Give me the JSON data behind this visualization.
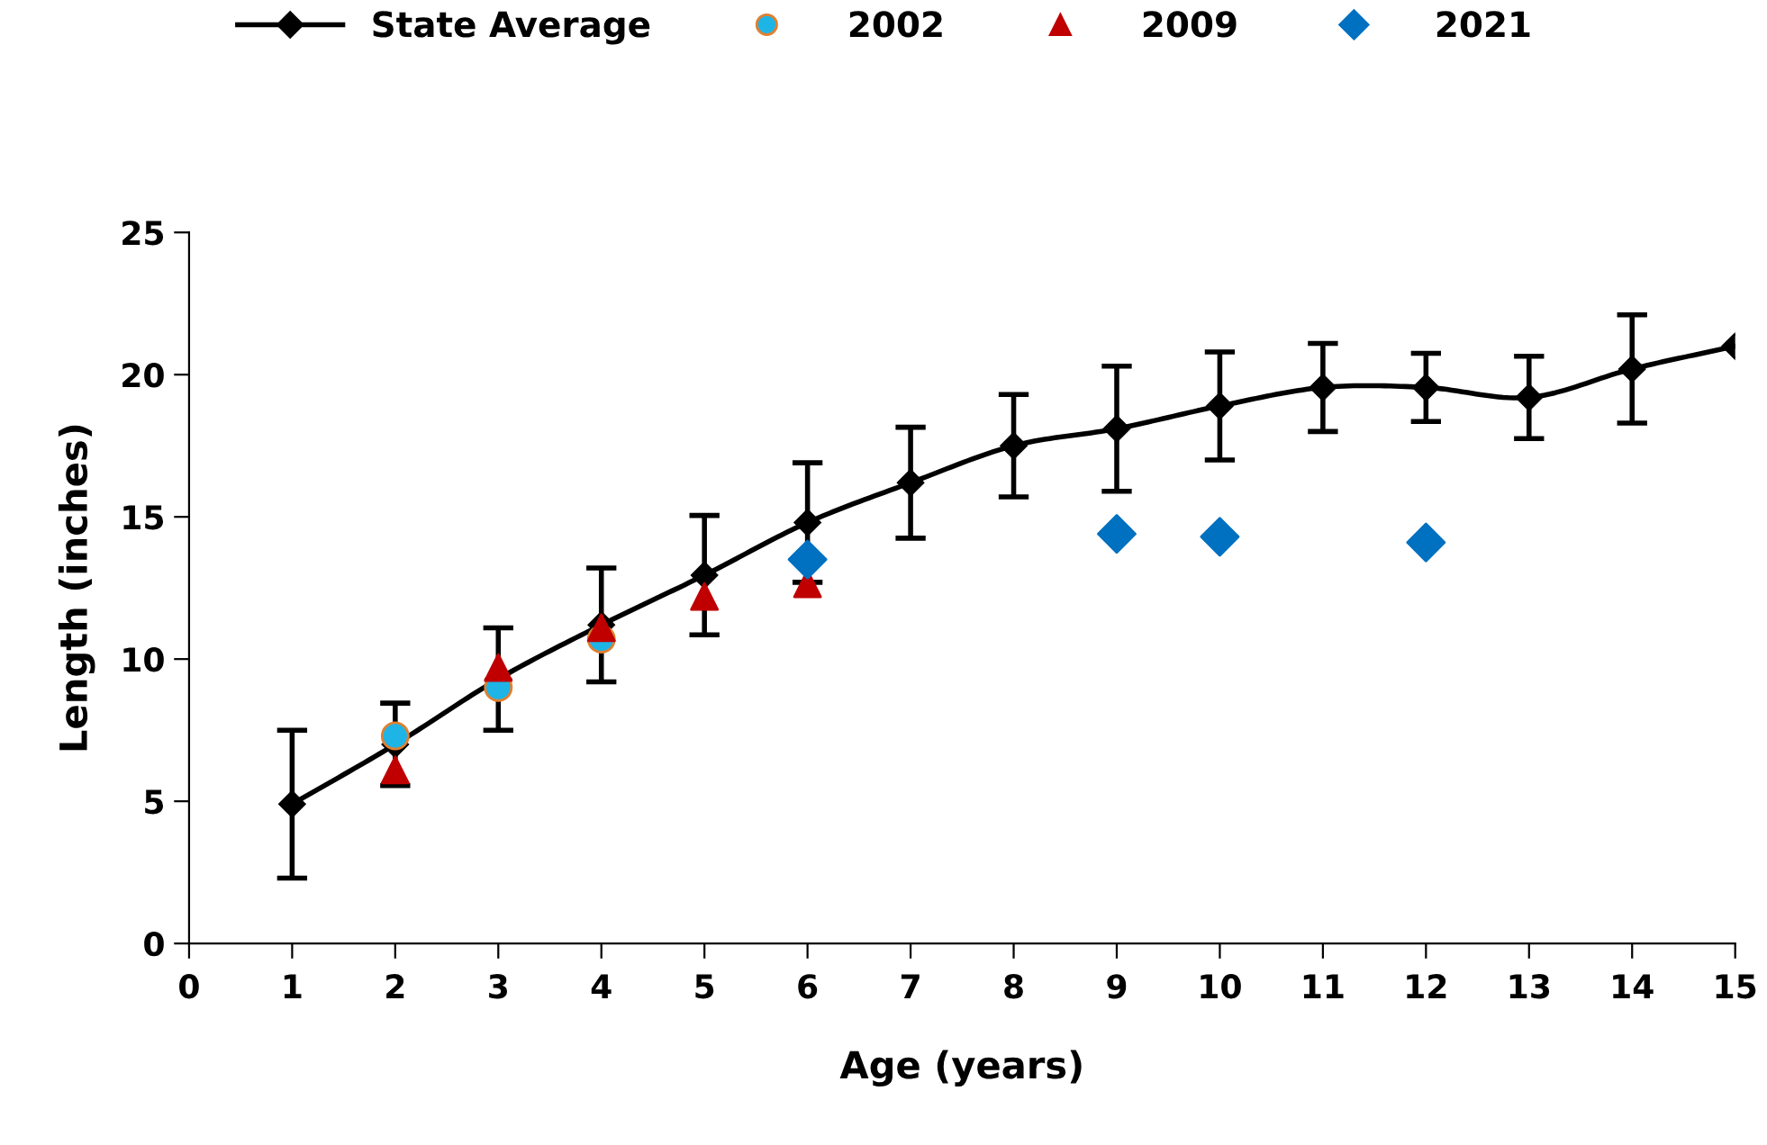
{
  "chart_data": {
    "type": "line",
    "xlabel": "Age (years)",
    "ylabel": "Length (inches)",
    "xlim": [
      0,
      15
    ],
    "ylim": [
      0,
      25
    ],
    "xticks": [
      0,
      1,
      2,
      3,
      4,
      5,
      6,
      7,
      8,
      9,
      10,
      11,
      12,
      13,
      14,
      15
    ],
    "yticks": [
      0,
      5,
      10,
      15,
      20,
      25
    ],
    "grid": false,
    "legend": "top",
    "series": [
      {
        "name": "State Average",
        "color": "#000000",
        "marker": "diamond",
        "x": [
          1,
          2,
          3,
          4,
          5,
          6,
          7,
          8,
          9,
          10,
          11,
          12,
          13,
          14,
          15
        ],
        "values": [
          4.9,
          7.0,
          9.3,
          11.2,
          12.95,
          14.8,
          16.2,
          17.5,
          18.1,
          18.9,
          19.55,
          19.55,
          19.2,
          20.2,
          21.0
        ],
        "errors": [
          2.6,
          1.45,
          1.8,
          2.0,
          2.1,
          2.1,
          1.95,
          1.8,
          2.2,
          1.9,
          1.55,
          1.2,
          1.45,
          1.9,
          null
        ]
      },
      {
        "name": "2002",
        "type": "scatter",
        "color": "#1fb4e6",
        "marker": "circle",
        "x": [
          2,
          3,
          4
        ],
        "values": [
          7.3,
          9.0,
          10.7
        ]
      },
      {
        "name": "2009",
        "type": "scatter",
        "color": "#c00000",
        "marker": "triangle",
        "x": [
          2,
          3,
          4,
          5,
          6
        ],
        "values": [
          6.1,
          9.7,
          11.1,
          12.2,
          12.65
        ]
      },
      {
        "name": "2021",
        "type": "scatter",
        "color": "#0070c0",
        "marker": "diamond",
        "x": [
          6,
          9,
          10,
          12
        ],
        "values": [
          13.5,
          14.4,
          14.3,
          14.1
        ]
      }
    ]
  }
}
